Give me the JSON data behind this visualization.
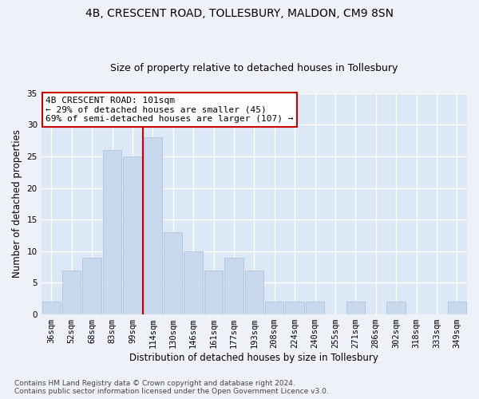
{
  "title1": "4B, CRESCENT ROAD, TOLLESBURY, MALDON, CM9 8SN",
  "title2": "Size of property relative to detached houses in Tollesbury",
  "xlabel": "Distribution of detached houses by size in Tollesbury",
  "ylabel": "Number of detached properties",
  "categories": [
    "36sqm",
    "52sqm",
    "68sqm",
    "83sqm",
    "99sqm",
    "114sqm",
    "130sqm",
    "146sqm",
    "161sqm",
    "177sqm",
    "193sqm",
    "208sqm",
    "224sqm",
    "240sqm",
    "255sqm",
    "271sqm",
    "286sqm",
    "302sqm",
    "318sqm",
    "333sqm",
    "349sqm"
  ],
  "values": [
    2,
    7,
    9,
    26,
    25,
    28,
    13,
    10,
    7,
    9,
    7,
    2,
    2,
    2,
    0,
    2,
    0,
    2,
    0,
    0,
    2
  ],
  "bar_color": "#c8d9ee",
  "bar_edge_color": "#adc4de",
  "vline_color": "#cc0000",
  "annotation_text": "4B CRESCENT ROAD: 101sqm\n← 29% of detached houses are smaller (45)\n69% of semi-detached houses are larger (107) →",
  "annotation_box_color": "#ffffff",
  "annotation_box_edge": "#cc0000",
  "ylim": [
    0,
    35
  ],
  "yticks": [
    0,
    5,
    10,
    15,
    20,
    25,
    30,
    35
  ],
  "footnote": "Contains HM Land Registry data © Crown copyright and database right 2024.\nContains public sector information licensed under the Open Government Licence v3.0.",
  "fig_bg_color": "#eef2f8",
  "plot_bg_color": "#dce8f5",
  "grid_color": "#ffffff",
  "title1_fontsize": 10,
  "title2_fontsize": 9,
  "axis_label_fontsize": 8.5,
  "tick_fontsize": 7.5,
  "annotation_fontsize": 8,
  "footnote_fontsize": 6.5
}
